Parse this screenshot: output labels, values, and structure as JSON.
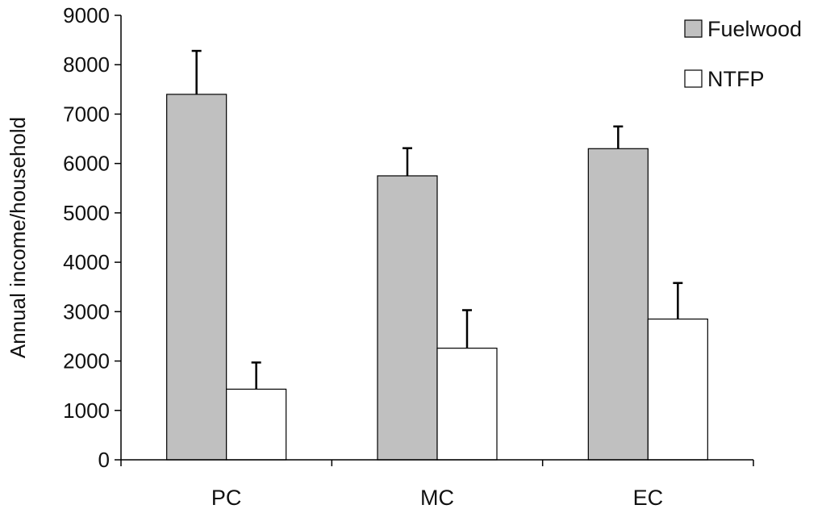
{
  "chart_data": {
    "type": "bar",
    "ylabel": "Annual income/household",
    "xlabel": "",
    "ylim": [
      0,
      9000
    ],
    "yticks": [
      0,
      1000,
      2000,
      3000,
      4000,
      5000,
      6000,
      7000,
      8000,
      9000
    ],
    "categories": [
      "PC",
      "MC",
      "EC"
    ],
    "series": [
      {
        "name": "Fuelwood",
        "values": [
          7400,
          5750,
          6300
        ],
        "errors": [
          880,
          560,
          450
        ],
        "color": "#c0c0c0"
      },
      {
        "name": "NTFP",
        "values": [
          1430,
          2260,
          2850
        ],
        "errors": [
          540,
          770,
          730
        ],
        "color": "#ffffff"
      }
    ],
    "legend_position": "top-right",
    "grid": false,
    "error_bars": "upper"
  }
}
